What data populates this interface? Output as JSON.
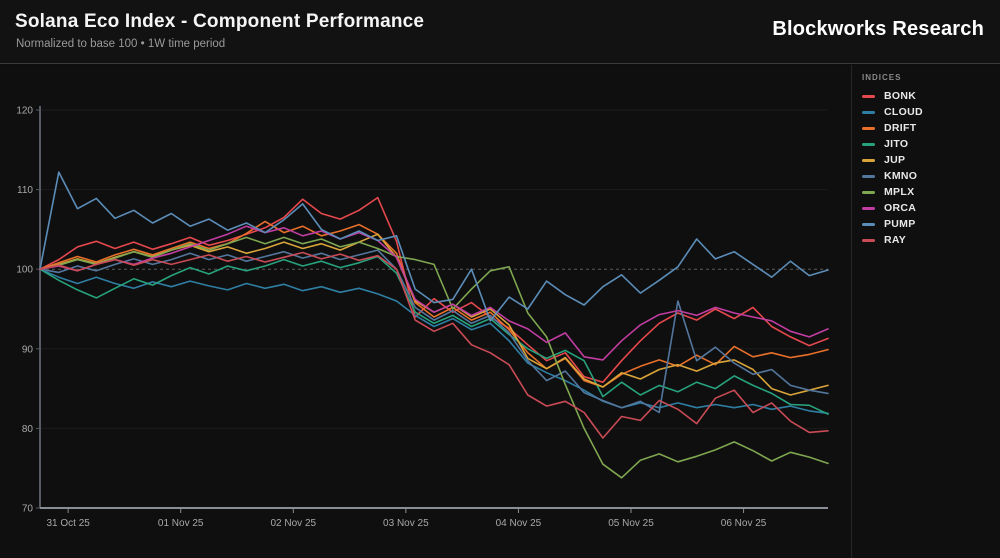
{
  "header": {
    "title": "Solana Eco Index - Component Performance",
    "subtitle": "Normalized to base 100 • 1W time period",
    "brand": "Blockworks Research"
  },
  "legend": {
    "heading": "INDICES",
    "position": "right"
  },
  "chart_data": {
    "type": "line",
    "title": "Solana Eco Index - Component Performance",
    "subtitle": "Normalized to base 100 • 1W time period",
    "ylabel": "",
    "xlabel": "",
    "ylim": [
      70,
      120
    ],
    "y_ticks": [
      70,
      80,
      90,
      100,
      110,
      120
    ],
    "baseline_value": 100,
    "baseline_style": "dashed",
    "grid": "faint horizontal lines at each 10 units",
    "legend_position": "right",
    "x_domain_days": [
      0,
      7
    ],
    "x_step_days": 0.16667,
    "x_ticks": [
      {
        "pos": 0.25,
        "label": "31 Oct 25"
      },
      {
        "pos": 1.25,
        "label": "01 Nov 25"
      },
      {
        "pos": 2.25,
        "label": "02 Nov 25"
      },
      {
        "pos": 3.25,
        "label": "03 Nov 25"
      },
      {
        "pos": 4.25,
        "label": "04 Nov 25"
      },
      {
        "pos": 5.25,
        "label": "05 Nov 25"
      },
      {
        "pos": 6.25,
        "label": "06 Nov 25"
      }
    ],
    "series": [
      {
        "name": "BONK",
        "color": "#e5484d",
        "values": [
          100,
          101.2,
          102.8,
          103.5,
          102.6,
          103.4,
          102.5,
          103.2,
          104,
          103,
          103.6,
          104.4,
          105.2,
          106.5,
          108.8,
          107,
          106.3,
          107.4,
          109,
          103.5,
          94,
          96.3,
          94.6,
          95.8,
          94,
          92.6,
          90.5,
          88.5,
          89.5,
          86.5,
          85.8,
          88.5,
          91,
          93.2,
          94.5,
          93.6,
          95,
          93.8,
          95.2,
          92.8,
          91.5,
          90.4,
          91.3
        ]
      },
      {
        "name": "CLOUD",
        "color": "#2f7ea3",
        "values": [
          100,
          99,
          98.2,
          99,
          98.2,
          97.6,
          98.4,
          97.8,
          98.5,
          97.9,
          97.4,
          98.2,
          97.6,
          98.1,
          97.3,
          97.8,
          97.1,
          97.6,
          96.9,
          96,
          94.2,
          92.8,
          93.8,
          92.4,
          93.2,
          91,
          88.2,
          87,
          86,
          84.8,
          83.4,
          82.6,
          83.2,
          82.6,
          83.2,
          82.6,
          83,
          82.6,
          83,
          82.4,
          82.8,
          82.2,
          81.9
        ]
      },
      {
        "name": "DRIFT",
        "color": "#e8702a",
        "values": [
          100,
          100.8,
          101.6,
          100.9,
          101.8,
          102.5,
          101.8,
          102.6,
          103.4,
          102.6,
          103.2,
          104.5,
          106,
          104.6,
          105.4,
          104.2,
          104.8,
          105.6,
          104.4,
          102,
          95.8,
          94,
          95.2,
          93.6,
          94.6,
          92.4,
          89.5,
          87.5,
          88.8,
          86,
          85.2,
          86.8,
          87.8,
          88.6,
          87.8,
          89.2,
          88,
          90.3,
          89,
          89.5,
          88.9,
          89.3,
          89.9
        ]
      },
      {
        "name": "JITO",
        "color": "#27a27d",
        "values": [
          100,
          98.6,
          97.4,
          96.4,
          97.6,
          98.8,
          98,
          99.2,
          100.2,
          99.4,
          100.4,
          99.8,
          100.4,
          101.2,
          100.4,
          101,
          100.2,
          100.8,
          101.6,
          99.5,
          94.6,
          93.2,
          94.2,
          92.8,
          93.8,
          91.8,
          90,
          88.8,
          89.8,
          88.5,
          84,
          85.8,
          84.2,
          85.4,
          84.6,
          85.8,
          85,
          86.6,
          85.4,
          84.4,
          83,
          82.9,
          81.8
        ]
      },
      {
        "name": "JUP",
        "color": "#d9a439",
        "values": [
          100,
          100.6,
          101.3,
          100.7,
          101.5,
          102.2,
          101.6,
          102.4,
          103,
          102.2,
          102.8,
          102,
          102.6,
          103.4,
          102.6,
          103.2,
          102.4,
          103.4,
          104.4,
          101.5,
          96,
          94.6,
          95.6,
          94,
          95,
          93,
          88.8,
          87.5,
          88.9,
          86.2,
          85.2,
          87,
          86.2,
          87.4,
          88,
          87.2,
          88.2,
          88.6,
          87.4,
          85,
          84.2,
          84.8,
          85.4
        ]
      },
      {
        "name": "KMNO",
        "color": "#53769d",
        "values": [
          100,
          99.6,
          100.4,
          99.8,
          100.6,
          101.3,
          100.6,
          101.2,
          102,
          101.2,
          101.8,
          101,
          101.6,
          102.2,
          101.4,
          102,
          101.2,
          101.8,
          102.4,
          100,
          95.2,
          93.6,
          94.8,
          93.2,
          94.2,
          92,
          88.5,
          86,
          87.2,
          84.5,
          83.5,
          82.6,
          83.4,
          82,
          96,
          88.5,
          90.2,
          88.2,
          86.8,
          87.4,
          85.4,
          84.8,
          84.4
        ]
      },
      {
        "name": "MPLX",
        "color": "#7fa650",
        "values": [
          100,
          100.5,
          101.2,
          100.6,
          101.4,
          102.2,
          101.5,
          102.4,
          103.2,
          102.4,
          103.2,
          104,
          103.2,
          104,
          103.2,
          103.8,
          102.8,
          103.4,
          102.6,
          101.6,
          101.2,
          100.6,
          95,
          97.5,
          99.8,
          100.3,
          94.5,
          91.5,
          85.5,
          80,
          75.5,
          73.8,
          76,
          76.8,
          75.8,
          76.5,
          77.3,
          78.3,
          77.2,
          75.9,
          77,
          76.4,
          75.6
        ]
      },
      {
        "name": "ORCA",
        "color": "#c13da2",
        "values": [
          100,
          100.4,
          99.8,
          100.6,
          101.2,
          100.6,
          101.4,
          102,
          102.8,
          103.6,
          104.4,
          105.4,
          104.6,
          105.2,
          104.2,
          104.8,
          103.8,
          104.6,
          103.6,
          101.5,
          96.2,
          94.6,
          95.6,
          94.2,
          95.2,
          93.5,
          92.5,
          90.8,
          92,
          89,
          88.6,
          91,
          93,
          94.3,
          94.8,
          94.2,
          95.2,
          94.5,
          94,
          93.5,
          92.2,
          91.5,
          92.5
        ]
      },
      {
        "name": "PUMP",
        "color": "#5b8db8",
        "values": [
          100,
          112.2,
          107.6,
          108.9,
          106.4,
          107.4,
          105.8,
          107,
          105.4,
          106.3,
          104.9,
          105.8,
          104.6,
          106.2,
          108.2,
          105,
          103.8,
          104.8,
          103.6,
          104.2,
          97.5,
          95.8,
          96.2,
          100,
          93.5,
          96.5,
          95,
          98.5,
          96.8,
          95.5,
          97.8,
          99.3,
          97,
          98.6,
          100.3,
          103.8,
          101.3,
          102.2,
          100.6,
          99,
          101,
          99.2,
          99.9
        ]
      },
      {
        "name": "RAY",
        "color": "#c94b56",
        "values": [
          100,
          100.5,
          99.8,
          100.6,
          101.2,
          100.5,
          101.2,
          100.6,
          101.2,
          101.8,
          101,
          101.6,
          100.9,
          101.5,
          102.1,
          101.3,
          101.9,
          101.1,
          101.7,
          100,
          93.6,
          92.2,
          93.2,
          90.5,
          89.5,
          88,
          84.2,
          82.8,
          83.4,
          82,
          78.8,
          81.5,
          81,
          83.5,
          82.4,
          80.6,
          83.8,
          84.8,
          82,
          83.2,
          80.9,
          79.5,
          79.7
        ]
      }
    ]
  },
  "axis_colors": {
    "y_axis_line": "#565b64",
    "x_axis_line": "#8a8f96",
    "grid_line": "#1d1d1d",
    "baseline": "#5a5a5a",
    "tick_label": "#a8a8a8"
  }
}
